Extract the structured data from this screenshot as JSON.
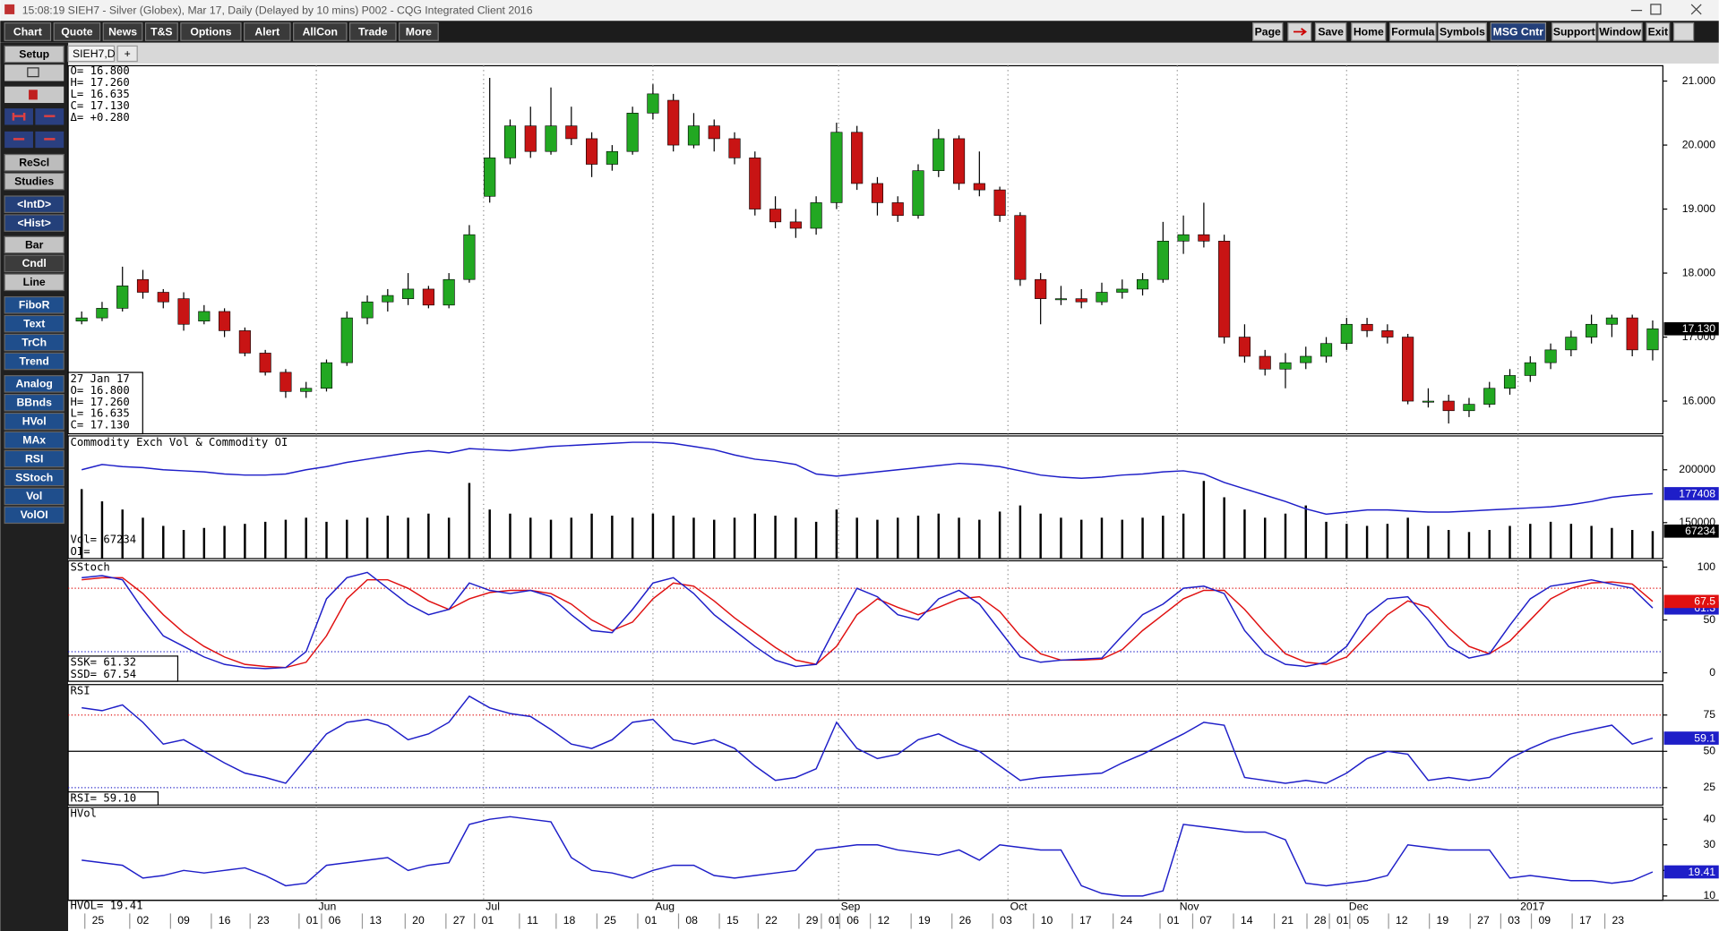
{
  "title_bar": "15:08:19  SIEH7 - Silver (Globex), Mar 17, Daily (Delayed by 10 mins)  P002 - CQG Integrated Client 2016",
  "menu": [
    "Chart",
    "Quote",
    "News",
    "T&S",
    "Options",
    "Alert",
    "AllCon",
    "Trade",
    "More"
  ],
  "right_toolbar": [
    "Page",
    "Save",
    "Home",
    "Formula",
    "Symbols",
    "MSG Cntr",
    "Support",
    "Window",
    "Exit"
  ],
  "left_toolbar": [
    [
      "Setup"
    ],
    [
      "ReScl",
      "Studies"
    ],
    [
      "<IntD>",
      "<Hist>"
    ],
    [
      "Bar",
      "Cndl",
      "Line"
    ],
    [
      "FiboR",
      "Text",
      "TrCh",
      "Trend"
    ],
    [
      "Analog",
      "BBnds",
      "HVol",
      "MAx",
      "RSI",
      "SStoch",
      "Vol",
      "VolOI"
    ]
  ],
  "tabs": [
    "SIEH7,D",
    "+"
  ],
  "xlim": [
    -0.5,
    77.5
  ],
  "months": [
    {
      "value": 11.5,
      "label": "Jun"
    },
    {
      "value": 19.7,
      "label": "Jul"
    },
    {
      "value": 28.0,
      "label": "Aug"
    },
    {
      "value": 37.1,
      "label": "Sep"
    },
    {
      "value": 45.4,
      "label": "Oct"
    },
    {
      "value": 53.7,
      "label": "Nov"
    },
    {
      "value": 62.0,
      "label": "Dec"
    },
    {
      "value": 70.4,
      "label": "2017"
    }
  ],
  "days": [
    {
      "value": 0.8,
      "label": "25"
    },
    {
      "value": 3.0,
      "label": "02"
    },
    {
      "value": 5.0,
      "label": "09"
    },
    {
      "value": 7.0,
      "label": "16"
    },
    {
      "value": 8.9,
      "label": "23"
    },
    {
      "value": 11.3,
      "label": "01"
    },
    {
      "value": 12.4,
      "label": "06"
    },
    {
      "value": 14.4,
      "label": "13"
    },
    {
      "value": 16.5,
      "label": "20"
    },
    {
      "value": 18.5,
      "label": "27"
    },
    {
      "value": 19.9,
      "label": "01"
    },
    {
      "value": 22.1,
      "label": "11"
    },
    {
      "value": 23.9,
      "label": "18"
    },
    {
      "value": 25.9,
      "label": "25"
    },
    {
      "value": 27.9,
      "label": "01"
    },
    {
      "value": 29.9,
      "label": "08"
    },
    {
      "value": 31.9,
      "label": "15"
    },
    {
      "value": 33.8,
      "label": "22"
    },
    {
      "value": 35.8,
      "label": "29"
    },
    {
      "value": 36.9,
      "label": "01"
    },
    {
      "value": 37.8,
      "label": "06"
    },
    {
      "value": 39.3,
      "label": "12"
    },
    {
      "value": 41.3,
      "label": "19"
    },
    {
      "value": 43.3,
      "label": "26"
    },
    {
      "value": 45.3,
      "label": "03"
    },
    {
      "value": 47.3,
      "label": "10"
    },
    {
      "value": 49.2,
      "label": "17"
    },
    {
      "value": 51.2,
      "label": "24"
    },
    {
      "value": 53.5,
      "label": "01"
    },
    {
      "value": 55.1,
      "label": "07"
    },
    {
      "value": 57.1,
      "label": "14"
    },
    {
      "value": 59.1,
      "label": "21"
    },
    {
      "value": 60.7,
      "label": "28"
    },
    {
      "value": 61.8,
      "label": "01"
    },
    {
      "value": 62.8,
      "label": "05"
    },
    {
      "value": 64.7,
      "label": "12"
    },
    {
      "value": 66.7,
      "label": "19"
    },
    {
      "value": 68.7,
      "label": "27"
    },
    {
      "value": 70.2,
      "label": "03"
    },
    {
      "value": 71.7,
      "label": "09"
    },
    {
      "value": 73.7,
      "label": "17"
    },
    {
      "value": 75.3,
      "label": "23"
    }
  ],
  "price": {
    "ylim": [
      15.49,
      21.24
    ],
    "yticks": [
      {
        "value": 21,
        "label": "21.000"
      },
      {
        "value": 20,
        "label": "20.000"
      },
      {
        "value": 19,
        "label": "19.000"
      },
      {
        "value": 18,
        "label": "18.000"
      },
      {
        "value": 17,
        "label": "17.000"
      },
      {
        "value": 16,
        "label": "16.000"
      }
    ],
    "up_color": "#22a822",
    "down_color": "#c81414",
    "readout": [
      "O= 16.800",
      "H= 17.260",
      "L= 16.635",
      "C= 17.130",
      "Δ= +0.280"
    ],
    "cursor": [
      "27 Jan 17",
      "O=  16.800",
      "H=  17.260",
      "L=  16.635",
      "C=  17.130"
    ],
    "last_label": "17.130",
    "candles": [
      [
        17.25,
        17.4,
        17.2,
        17.3
      ],
      [
        17.3,
        17.55,
        17.25,
        17.45
      ],
      [
        17.45,
        18.1,
        17.4,
        17.8
      ],
      [
        17.9,
        18.05,
        17.6,
        17.7
      ],
      [
        17.7,
        17.75,
        17.45,
        17.55
      ],
      [
        17.6,
        17.7,
        17.1,
        17.2
      ],
      [
        17.25,
        17.5,
        17.2,
        17.4
      ],
      [
        17.4,
        17.45,
        17.0,
        17.1
      ],
      [
        17.1,
        17.15,
        16.7,
        16.75
      ],
      [
        16.75,
        16.8,
        16.4,
        16.45
      ],
      [
        16.45,
        16.5,
        16.05,
        16.15
      ],
      [
        16.15,
        16.3,
        16.05,
        16.2
      ],
      [
        16.2,
        16.65,
        16.15,
        16.6
      ],
      [
        16.6,
        17.4,
        16.55,
        17.3
      ],
      [
        17.3,
        17.65,
        17.2,
        17.55
      ],
      [
        17.55,
        17.75,
        17.4,
        17.65
      ],
      [
        17.6,
        18.0,
        17.5,
        17.75
      ],
      [
        17.75,
        17.8,
        17.45,
        17.5
      ],
      [
        17.5,
        18.0,
        17.45,
        17.9
      ],
      [
        17.9,
        18.75,
        17.85,
        18.6
      ],
      [
        19.2,
        21.05,
        19.1,
        19.8
      ],
      [
        19.8,
        20.4,
        19.7,
        20.3
      ],
      [
        20.3,
        20.6,
        19.8,
        19.9
      ],
      [
        19.9,
        20.9,
        19.85,
        20.3
      ],
      [
        20.3,
        20.6,
        20.0,
        20.1
      ],
      [
        20.1,
        20.2,
        19.5,
        19.7
      ],
      [
        19.7,
        20.0,
        19.6,
        19.9
      ],
      [
        19.9,
        20.6,
        19.85,
        20.5
      ],
      [
        20.5,
        20.95,
        20.4,
        20.8
      ],
      [
        20.7,
        20.8,
        19.9,
        20.0
      ],
      [
        20.0,
        20.5,
        19.95,
        20.3
      ],
      [
        20.3,
        20.4,
        19.9,
        20.1
      ],
      [
        20.1,
        20.2,
        19.7,
        19.8
      ],
      [
        19.8,
        19.9,
        18.9,
        19.0
      ],
      [
        19.0,
        19.2,
        18.7,
        18.8
      ],
      [
        18.8,
        19.0,
        18.55,
        18.7
      ],
      [
        18.7,
        19.2,
        18.6,
        19.1
      ],
      [
        19.1,
        20.35,
        19.0,
        20.2
      ],
      [
        20.2,
        20.3,
        19.3,
        19.4
      ],
      [
        19.4,
        19.5,
        18.9,
        19.1
      ],
      [
        19.1,
        19.2,
        18.8,
        18.9
      ],
      [
        18.9,
        19.7,
        18.85,
        19.6
      ],
      [
        19.6,
        20.25,
        19.5,
        20.1
      ],
      [
        20.1,
        20.15,
        19.3,
        19.4
      ],
      [
        19.4,
        19.9,
        19.2,
        19.3
      ],
      [
        19.3,
        19.35,
        18.8,
        18.9
      ],
      [
        18.9,
        18.95,
        17.8,
        17.9
      ],
      [
        17.9,
        18.0,
        17.2,
        17.6
      ],
      [
        17.6,
        17.8,
        17.5,
        17.6
      ],
      [
        17.6,
        17.75,
        17.45,
        17.55
      ],
      [
        17.55,
        17.85,
        17.5,
        17.7
      ],
      [
        17.7,
        17.9,
        17.6,
        17.75
      ],
      [
        17.75,
        18.0,
        17.65,
        17.9
      ],
      [
        17.9,
        18.8,
        17.85,
        18.5
      ],
      [
        18.5,
        18.9,
        18.3,
        18.6
      ],
      [
        18.6,
        19.1,
        18.4,
        18.5
      ],
      [
        18.5,
        18.6,
        16.9,
        17.0
      ],
      [
        17.0,
        17.2,
        16.6,
        16.7
      ],
      [
        16.7,
        16.8,
        16.4,
        16.5
      ],
      [
        16.5,
        16.75,
        16.2,
        16.6
      ],
      [
        16.6,
        16.85,
        16.5,
        16.7
      ],
      [
        16.7,
        17.0,
        16.6,
        16.9
      ],
      [
        16.9,
        17.3,
        16.8,
        17.2
      ],
      [
        17.2,
        17.3,
        17.0,
        17.1
      ],
      [
        17.1,
        17.2,
        16.9,
        17.0
      ],
      [
        17.0,
        17.05,
        15.95,
        16.0
      ],
      [
        16.0,
        16.2,
        15.9,
        16.0
      ],
      [
        16.0,
        16.1,
        15.65,
        15.85
      ],
      [
        15.85,
        16.05,
        15.75,
        15.95
      ],
      [
        15.95,
        16.3,
        15.9,
        16.2
      ],
      [
        16.2,
        16.5,
        16.1,
        16.4
      ],
      [
        16.4,
        16.7,
        16.3,
        16.6
      ],
      [
        16.6,
        16.9,
        16.5,
        16.8
      ],
      [
        16.8,
        17.1,
        16.7,
        17.0
      ],
      [
        17.0,
        17.35,
        16.9,
        17.2
      ],
      [
        17.2,
        17.35,
        17.0,
        17.3
      ],
      [
        17.3,
        17.35,
        16.7,
        16.8
      ],
      [
        16.8,
        17.26,
        16.635,
        17.13
      ]
    ]
  },
  "volume": {
    "title": "Commodity Exch Vol & Commodity OI",
    "readout": [
      "Vol=   67234",
      "OI="
    ],
    "oi_label": "177408",
    "vol_label": "67234",
    "oi_ylim": [
      116000,
      232000
    ],
    "yticks": [
      200000,
      150000
    ],
    "vol_ylim": [
      0,
      300000
    ],
    "oi_color": "#1e1ec8",
    "vol_color": "#000000",
    "oi": [
      200000,
      205000,
      203000,
      202000,
      200000,
      199000,
      198000,
      196000,
      195000,
      195000,
      196000,
      200000,
      203000,
      207000,
      210000,
      213000,
      216000,
      218000,
      216000,
      220000,
      219000,
      218000,
      220000,
      222000,
      223000,
      224000,
      225000,
      226000,
      226000,
      225000,
      222000,
      219000,
      214000,
      210000,
      208000,
      205000,
      196000,
      194000,
      196000,
      198000,
      200000,
      202000,
      204000,
      206000,
      205000,
      203000,
      199000,
      195000,
      193000,
      192000,
      193000,
      195000,
      196000,
      198000,
      199000,
      196000,
      188000,
      182000,
      176000,
      170000,
      163000,
      158000,
      160000,
      162000,
      162000,
      161000,
      160000,
      160000,
      161000,
      162000,
      163000,
      164000,
      165000,
      167000,
      170000,
      174000,
      176000,
      177408
    ],
    "vol": [
      170000,
      140000,
      120000,
      100000,
      80000,
      70000,
      75000,
      80000,
      85000,
      90000,
      95000,
      100000,
      90000,
      95000,
      100000,
      105000,
      100000,
      110000,
      100000,
      185000,
      120000,
      110000,
      100000,
      95000,
      100000,
      110000,
      105000,
      100000,
      110000,
      105000,
      100000,
      95000,
      100000,
      110000,
      105000,
      100000,
      90000,
      120000,
      100000,
      95000,
      100000,
      105000,
      110000,
      100000,
      95000,
      115000,
      130000,
      110000,
      100000,
      95000,
      100000,
      95000,
      100000,
      105000,
      110000,
      190000,
      150000,
      120000,
      100000,
      110000,
      130000,
      90000,
      85000,
      80000,
      85000,
      100000,
      80000,
      70000,
      65000,
      70000,
      80000,
      85000,
      90000,
      85000,
      80000,
      75000,
      70000,
      67234
    ]
  },
  "stoch": {
    "title": "SStoch",
    "readout": [
      "SSK=    61.32",
      "SSD=    67.54"
    ],
    "ssk_label": "61.3",
    "ssd_label": "67.5",
    "ylim": [
      -8,
      106
    ],
    "yticks": [
      100,
      50,
      0
    ],
    "upper": 80,
    "lower": 20,
    "ssk_color": "#1e1ec8",
    "ssd_color": "#e01010",
    "ssk": [
      90,
      92,
      88,
      60,
      35,
      25,
      15,
      8,
      5,
      4,
      5,
      20,
      70,
      90,
      95,
      80,
      65,
      55,
      60,
      85,
      78,
      75,
      78,
      72,
      55,
      40,
      38,
      60,
      85,
      90,
      75,
      55,
      40,
      25,
      12,
      6,
      8,
      45,
      80,
      72,
      55,
      50,
      70,
      78,
      65,
      40,
      15,
      10,
      12,
      13,
      14,
      35,
      55,
      65,
      80,
      82,
      75,
      40,
      18,
      8,
      6,
      10,
      25,
      55,
      70,
      72,
      50,
      25,
      14,
      18,
      45,
      70,
      82,
      85,
      88,
      84,
      80,
      61.32
    ],
    "ssd": [
      88,
      90,
      90,
      75,
      55,
      38,
      25,
      15,
      8,
      6,
      5,
      10,
      35,
      70,
      88,
      88,
      80,
      68,
      60,
      70,
      76,
      78,
      78,
      75,
      65,
      50,
      40,
      48,
      70,
      85,
      82,
      68,
      52,
      38,
      24,
      12,
      8,
      25,
      55,
      70,
      62,
      55,
      62,
      70,
      72,
      58,
      35,
      18,
      12,
      12,
      13,
      22,
      40,
      55,
      70,
      78,
      78,
      60,
      38,
      18,
      10,
      8,
      15,
      35,
      55,
      68,
      62,
      42,
      25,
      18,
      30,
      50,
      70,
      80,
      85,
      86,
      84,
      67.54
    ]
  },
  "rsi": {
    "title": "RSI",
    "readout": "RSI=   59.10",
    "last_label": "59.1",
    "ylim": [
      13,
      96
    ],
    "yticks": [
      75,
      50,
      25
    ],
    "upper": 75,
    "middle": 50,
    "lower": 25,
    "color": "#1e1ec8",
    "values": [
      80,
      78,
      82,
      70,
      55,
      58,
      50,
      42,
      35,
      32,
      28,
      45,
      62,
      70,
      72,
      68,
      58,
      62,
      70,
      88,
      80,
      76,
      74,
      65,
      55,
      52,
      58,
      70,
      72,
      58,
      55,
      58,
      52,
      40,
      30,
      32,
      38,
      70,
      52,
      45,
      48,
      58,
      62,
      55,
      50,
      40,
      30,
      32,
      33,
      34,
      35,
      42,
      48,
      55,
      62,
      70,
      68,
      32,
      30,
      28,
      30,
      28,
      35,
      45,
      50,
      48,
      30,
      32,
      30,
      32,
      45,
      52,
      58,
      62,
      65,
      68,
      55,
      59.1
    ]
  },
  "hvol": {
    "title": "HVol",
    "readout": "HVOL=   19.41",
    "last_label": "19.41",
    "ylim": [
      8.3,
      44.7
    ],
    "yticks": [
      40,
      30,
      20,
      10
    ],
    "color": "#1e1ec8",
    "values": [
      24,
      23,
      22,
      17,
      18,
      20,
      19,
      20,
      21,
      18,
      14,
      15,
      22,
      23,
      24,
      25,
      20,
      22,
      23,
      38,
      40,
      41,
      40,
      39,
      25,
      20,
      19,
      17,
      20,
      22,
      22,
      18,
      17,
      18,
      19,
      20,
      28,
      29,
      30,
      30,
      28,
      27,
      26,
      28,
      24,
      30,
      29,
      28,
      28,
      14,
      11,
      10,
      10,
      12,
      38,
      37,
      36,
      35,
      35,
      32,
      15,
      14,
      15,
      16,
      18,
      30,
      29,
      28,
      28,
      28,
      17,
      18,
      17,
      16,
      16,
      15,
      16,
      19.41
    ]
  }
}
